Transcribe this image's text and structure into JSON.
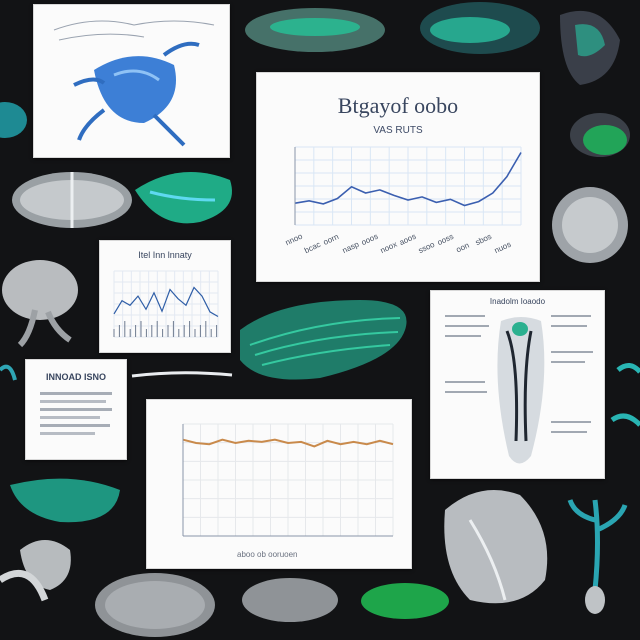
{
  "main_chart": {
    "title": "Btgayof oobo",
    "subtitle": "VAS RUTS",
    "line_color": "#3b5fb0",
    "values": [
      0.28,
      0.31,
      0.27,
      0.34,
      0.49,
      0.41,
      0.45,
      0.38,
      0.32,
      0.36,
      0.29,
      0.33,
      0.25,
      0.3,
      0.41,
      0.62,
      0.93
    ],
    "x_labels": [
      "nnoo",
      "bcac",
      "oorn",
      "nasp",
      "ooos",
      "noox",
      "aoos",
      "ssoo",
      "ooss",
      "oon",
      "sbos",
      "nuos"
    ]
  },
  "small_chart": {
    "title": "Itel Inn lnnaty",
    "line_color": "#2f5ea7",
    "values": [
      0.35,
      0.55,
      0.48,
      0.62,
      0.42,
      0.67,
      0.39,
      0.72,
      0.58,
      0.48,
      0.75,
      0.62,
      0.38,
      0.31
    ]
  },
  "bottom_chart": {
    "line_color": "#c98a4b",
    "values": [
      0.86,
      0.83,
      0.82,
      0.86,
      0.83,
      0.85,
      0.84,
      0.86,
      0.83,
      0.84,
      0.8,
      0.85,
      0.82,
      0.84,
      0.82,
      0.85,
      0.82
    ],
    "x_caption": "aboo ob ooruoen"
  },
  "diagram_card": {
    "title": "Inadolm Ioaodo"
  },
  "text_card": {
    "title": "INNOAD ISNO"
  },
  "palette": {
    "teal": "#1fa39a",
    "blue": "#4aa3e6",
    "dark": "#121315",
    "chart_grid": "#d9e6f5"
  }
}
